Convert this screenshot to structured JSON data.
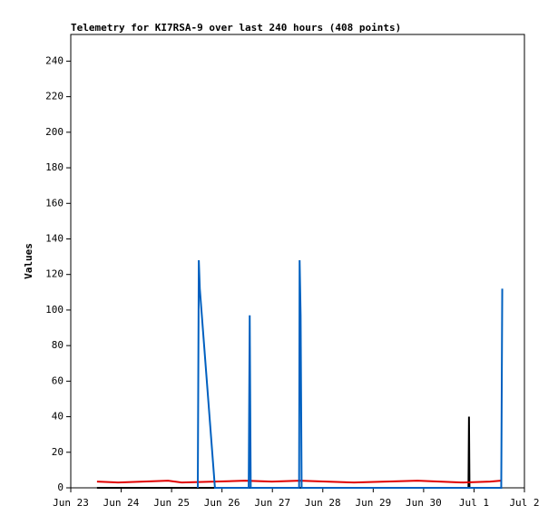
{
  "chart_data": {
    "type": "line",
    "title": "Telemetry for KI7RSA-9 over last 240 hours (408 points)",
    "y_label": "Values",
    "xlim": [
      0,
      9
    ],
    "ylim": [
      0,
      255
    ],
    "xticks": [
      {
        "value": 0,
        "label": "Jun 23"
      },
      {
        "value": 1,
        "label": "Jun 24"
      },
      {
        "value": 2,
        "label": "Jun 25"
      },
      {
        "value": 3,
        "label": "Jun 26"
      },
      {
        "value": 4,
        "label": "Jun 27"
      },
      {
        "value": 5,
        "label": "Jun 28"
      },
      {
        "value": 6,
        "label": "Jun 29"
      },
      {
        "value": 7,
        "label": "Jun 30"
      },
      {
        "value": 8,
        "label": "Jul 1"
      },
      {
        "value": 9,
        "label": "Jul 2"
      }
    ],
    "yticks": [
      0,
      20,
      40,
      60,
      80,
      100,
      120,
      140,
      160,
      180,
      200,
      220,
      240
    ],
    "series": [
      {
        "color": "#000000",
        "x": [
          0.52,
          7.89,
          7.9,
          7.91,
          8.54
        ],
        "values": [
          0,
          0,
          40,
          0,
          0
        ]
      },
      {
        "color": "#e00000",
        "x": [
          0.52,
          0.94,
          1.93,
          2.2,
          3.46,
          3.99,
          4.54,
          5.62,
          6.88,
          7.78,
          8.32,
          8.53
        ],
        "values": [
          3.5,
          3,
          4,
          3,
          4,
          3.5,
          4,
          3,
          4,
          3,
          3.5,
          4
        ]
      },
      {
        "color": "#0060c0",
        "x": [
          2.52,
          2.54,
          2.56,
          2.86,
          3.53,
          3.55,
          3.57,
          4.53,
          4.54,
          4.56,
          4.58,
          8.54,
          8.56
        ],
        "values": [
          0,
          128,
          112,
          0,
          0,
          97,
          0,
          0,
          128,
          97,
          0,
          0,
          112
        ]
      }
    ]
  }
}
